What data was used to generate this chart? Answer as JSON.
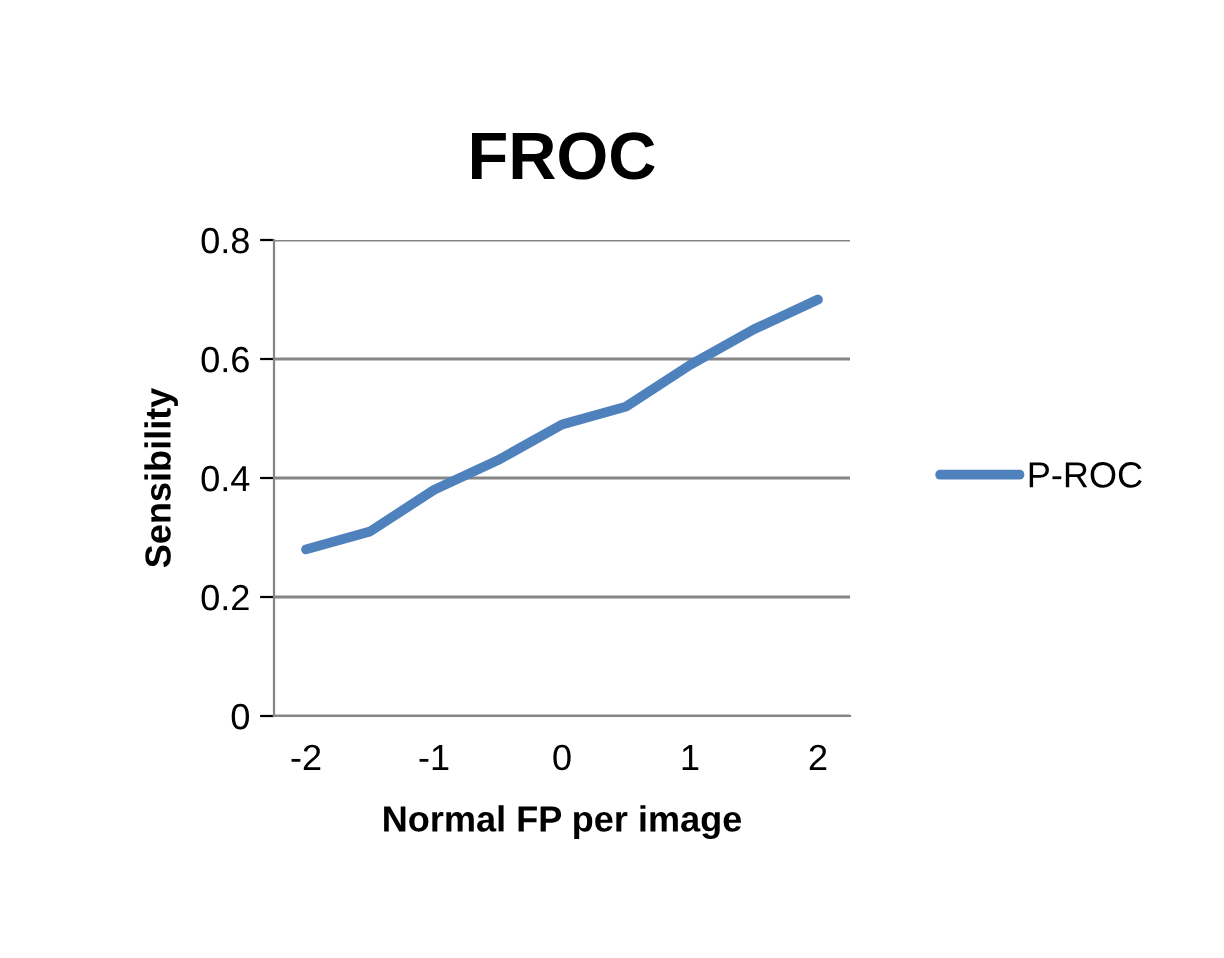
{
  "chart_data": {
    "type": "line",
    "title": "FROC",
    "xlabel": "Normal FP per image",
    "ylabel": "Sensibility",
    "categories": [
      "-2",
      null,
      "-1",
      null,
      "0",
      null,
      "1",
      null,
      "2"
    ],
    "series": [
      {
        "name": "P-ROC",
        "color": "#4f81bd",
        "values": [
          0.28,
          0.31,
          0.38,
          0.43,
          0.49,
          0.52,
          0.59,
          0.65,
          0.7
        ]
      }
    ],
    "ylim": [
      0,
      0.8
    ],
    "yticks": [
      0,
      0.2,
      0.4,
      0.6,
      0.8
    ],
    "grid": "y",
    "legend": "right",
    "marker": "none",
    "line_style": "solid"
  }
}
